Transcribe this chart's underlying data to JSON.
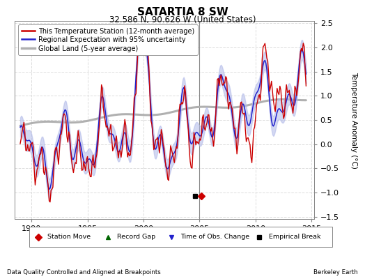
{
  "title": "SATARTIA 8 SW",
  "subtitle": "32.586 N, 90.626 W (United States)",
  "xlabel_left": "Data Quality Controlled and Aligned at Breakpoints",
  "xlabel_right": "Berkeley Earth",
  "ylabel": "Temperature Anomaly (°C)",
  "xlim": [
    1988.5,
    2015.2
  ],
  "ylim": [
    -1.55,
    2.55
  ],
  "yticks": [
    -1.5,
    -1.0,
    -0.5,
    0.0,
    0.5,
    1.0,
    1.5,
    2.0,
    2.5
  ],
  "xticks": [
    1990,
    1995,
    2000,
    2005,
    2010,
    2015
  ],
  "bg_color": "#ffffff",
  "plot_bg_color": "#ffffff",
  "grid_color": "#dddddd",
  "uncertainty_color": "#b0b8e8",
  "regional_color": "#2222cc",
  "station_color": "#cc0000",
  "global_color": "#b0b0b0",
  "vline_x": 2005.0,
  "vline_color": "#888888",
  "empirical_break_x": 2004.6,
  "station_move_x": 2005.15,
  "marker_y": -1.08
}
